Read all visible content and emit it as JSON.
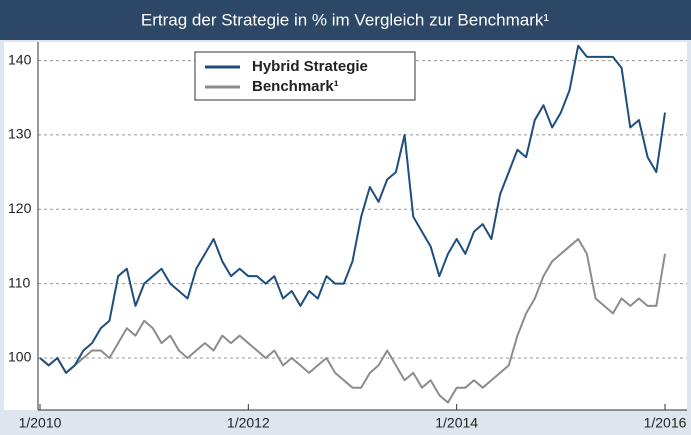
{
  "chart_data": {
    "type": "line",
    "title": "Ertrag der Strategie in % im Vergleich zur Benchmark¹",
    "x": [
      "1/2010",
      "2/2010",
      "3/2010",
      "4/2010",
      "5/2010",
      "6/2010",
      "7/2010",
      "8/2010",
      "9/2010",
      "10/2010",
      "11/2010",
      "12/2010",
      "1/2011",
      "2/2011",
      "3/2011",
      "4/2011",
      "5/2011",
      "6/2011",
      "7/2011",
      "8/2011",
      "9/2011",
      "10/2011",
      "11/2011",
      "12/2011",
      "1/2012",
      "2/2012",
      "3/2012",
      "4/2012",
      "5/2012",
      "6/2012",
      "7/2012",
      "8/2012",
      "9/2012",
      "10/2012",
      "11/2012",
      "12/2012",
      "1/2013",
      "2/2013",
      "3/2013",
      "4/2013",
      "5/2013",
      "6/2013",
      "7/2013",
      "8/2013",
      "9/2013",
      "10/2013",
      "11/2013",
      "12/2013",
      "1/2014",
      "2/2014",
      "3/2014",
      "4/2014",
      "5/2014",
      "6/2014",
      "7/2014",
      "8/2014",
      "9/2014",
      "10/2014",
      "11/2014",
      "12/2014",
      "1/2015",
      "2/2015",
      "3/2015",
      "4/2015",
      "5/2015",
      "6/2015",
      "7/2015",
      "8/2015",
      "9/2015",
      "10/2015",
      "11/2015",
      "12/2015",
      "1/2016"
    ],
    "series": [
      {
        "name": "Hybrid Strategie",
        "color": "#1f4e7e",
        "values": [
          100,
          99,
          100,
          98,
          99,
          101,
          102,
          104,
          105,
          111,
          112,
          107,
          110,
          111,
          112,
          110,
          109,
          108,
          112,
          114,
          116,
          113,
          111,
          112,
          111,
          111,
          110,
          111,
          108,
          109,
          107,
          109,
          108,
          111,
          110,
          110,
          113,
          119,
          123,
          121,
          124,
          125,
          130,
          119,
          117,
          115,
          111,
          114,
          116,
          114,
          117,
          118,
          116,
          122,
          125,
          128,
          127,
          132,
          134,
          131,
          133,
          136,
          142,
          140.5,
          140.5,
          140.5,
          140.5,
          139,
          131,
          132,
          127,
          125,
          133
        ]
      },
      {
        "name": "Benchmark¹",
        "color": "#8c8c8c",
        "values": [
          100,
          99,
          100,
          98,
          99,
          100,
          101,
          101,
          100,
          102,
          104,
          103,
          105,
          104,
          102,
          103,
          101,
          100,
          101,
          102,
          101,
          103,
          102,
          103,
          102,
          101,
          100,
          101,
          99,
          100,
          99,
          98,
          99,
          100,
          98,
          97,
          96,
          96,
          98,
          99,
          101,
          99,
          97,
          98,
          96,
          97,
          95,
          94,
          96,
          96,
          97,
          96,
          97,
          98,
          99,
          103,
          106,
          108,
          111,
          113,
          114,
          115,
          116,
          114,
          108,
          107,
          106,
          108,
          107,
          108,
          107,
          107,
          114
        ]
      }
    ],
    "xticks": [
      "1/2010",
      "1/2012",
      "1/2014",
      "1/2016"
    ],
    "ylim": [
      93,
      142.5
    ],
    "yticks": [
      100,
      110,
      120,
      130,
      140
    ],
    "grid": true
  }
}
